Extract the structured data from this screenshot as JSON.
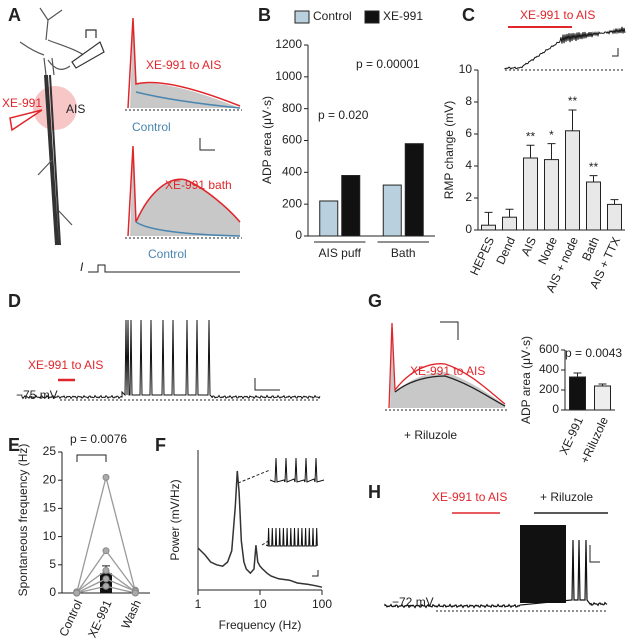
{
  "chart_data": [
    {
      "type": "trace",
      "panel": "A",
      "labels": [
        "XE-991",
        "AIS",
        "XE-991 to AIS",
        "Control",
        "XE-991 bath",
        "Control",
        "I"
      ]
    },
    {
      "type": "grouped_bar",
      "panel": "B",
      "y_label": "ADP area (μV·s)",
      "categories": [
        "AIS puff",
        "Bath"
      ],
      "series": [
        {
          "name": "Control",
          "color": "#b9d1de",
          "values": [
            220,
            320
          ]
        },
        {
          "name": "XE-991",
          "color": "#111111",
          "values": [
            380,
            580
          ]
        }
      ],
      "annotations": [
        "p = 0.020",
        "p = 0.00001"
      ],
      "ylim": [
        0,
        1200
      ],
      "yticks": [
        0,
        200,
        400,
        600,
        800,
        1000,
        1200
      ]
    },
    {
      "type": "bar",
      "panel": "C",
      "title": "XE-991 to AIS",
      "y_label": "RMP change (mV)",
      "categories": [
        "HEPES",
        "Dend",
        "AIS",
        "Node",
        "AIS + node",
        "Bath",
        "AIS + TTX"
      ],
      "values": [
        0.3,
        0.8,
        4.5,
        4.4,
        6.2,
        3.0,
        1.6
      ],
      "errors": [
        0.8,
        0.5,
        0.8,
        1.0,
        1.3,
        0.4,
        0.3
      ],
      "significance": [
        null,
        null,
        "**",
        "*",
        "**",
        "**",
        null
      ],
      "color": "#e8e8e8",
      "ylim": [
        0,
        10
      ],
      "yticks": [
        0,
        2,
        4,
        6,
        8,
        10
      ]
    },
    {
      "type": "trace",
      "panel": "D",
      "labels": [
        "XE-991 to AIS",
        "−75 mV"
      ]
    },
    {
      "type": "paired",
      "panel": "E",
      "y_label": "Spontaneous frequency (Hz)",
      "categories": [
        "Control",
        "XE-991",
        "Wash"
      ],
      "series": [
        {
          "values": [
            0,
            20.5,
            0.3
          ]
        },
        {
          "values": [
            0,
            7.5,
            0.5
          ]
        },
        {
          "values": [
            0.2,
            4,
            0.2
          ]
        },
        {
          "values": [
            0,
            2.5,
            0.3
          ]
        },
        {
          "values": [
            0,
            1.2,
            0
          ]
        }
      ],
      "bar_values": [
        null,
        3.5,
        null
      ],
      "bar_errors": [
        null,
        1.3,
        null
      ],
      "annotation": "p = 0.0076",
      "ylim": [
        0,
        25
      ],
      "yticks": [
        0,
        5,
        10,
        15,
        20,
        25
      ]
    },
    {
      "type": "line",
      "panel": "F",
      "x_label": "Frequency (Hz)",
      "y_label": "Power (mV/Hz)",
      "log_x": true,
      "x": [
        1,
        1.3,
        1.6,
        2,
        2.5,
        3,
        3.5,
        4,
        4.3,
        4.6,
        5,
        5.5,
        6,
        7,
        8,
        8.6,
        9.2,
        10,
        11,
        13,
        15,
        20,
        30,
        40,
        60,
        80,
        100
      ],
      "values": [
        0.3,
        0.25,
        0.2,
        0.18,
        0.17,
        0.2,
        0.28,
        0.6,
        0.85,
        0.7,
        0.35,
        0.2,
        0.15,
        0.12,
        0.15,
        0.32,
        0.2,
        0.17,
        0.15,
        0.12,
        0.1,
        0.08,
        0.07,
        0.05,
        0.04,
        0.03,
        0.02
      ],
      "color": "#333333",
      "xlim": [
        1,
        100
      ],
      "xticks": [
        1,
        10,
        100
      ],
      "ylim": [
        0,
        1
      ]
    },
    {
      "type": "bar",
      "panel": "G",
      "trace_labels": [
        "XE-991 to AIS",
        "+ Riluzole"
      ],
      "y_label": "ADP area (μV·s)",
      "categories": [
        "XE-991",
        "+Riluzole"
      ],
      "values": [
        330,
        240
      ],
      "errors": [
        40,
        20
      ],
      "colors": [
        "#111111",
        "#eeeeee"
      ],
      "annotation": "p = 0.0043",
      "ylim": [
        0,
        600
      ],
      "yticks": [
        0,
        200,
        400,
        600
      ]
    },
    {
      "type": "trace",
      "panel": "H",
      "labels": [
        "XE-991 to AIS",
        "+ Riluzole",
        "−72 mV"
      ]
    }
  ]
}
